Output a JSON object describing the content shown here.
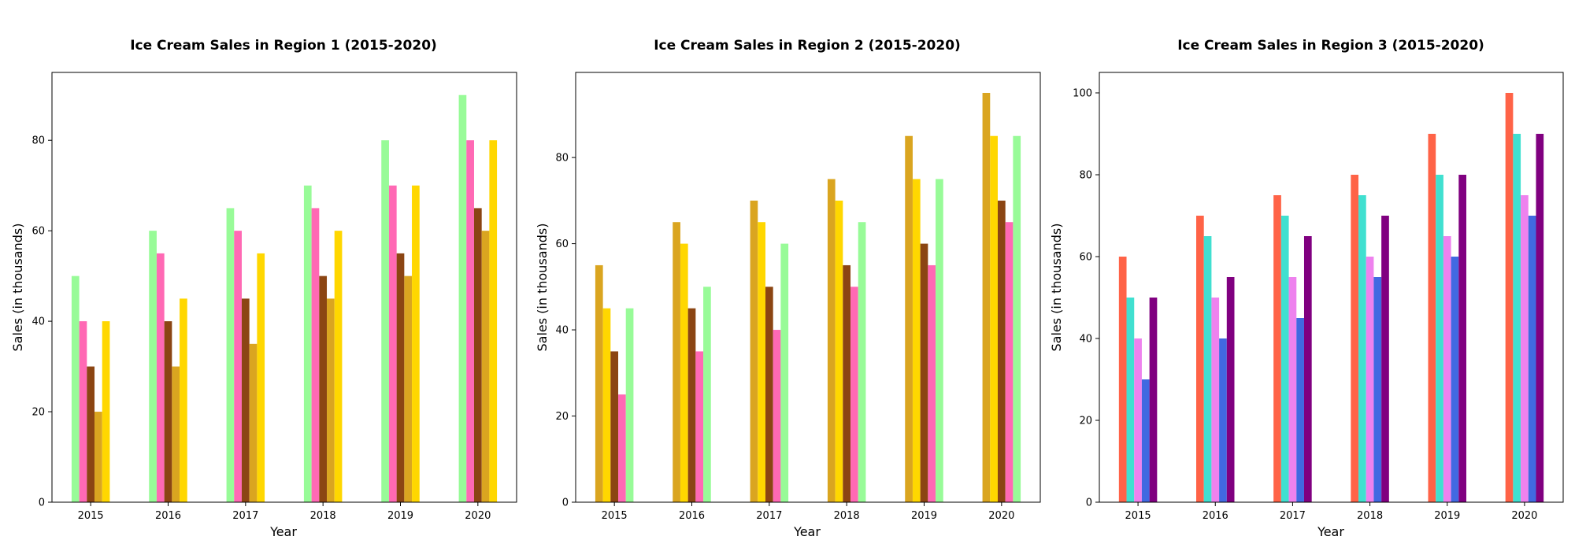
{
  "chart_data": [
    {
      "type": "bar",
      "title": "Ice Cream Sales in Region 1 (2015-2020)",
      "xlabel": "Year",
      "ylabel": "Sales (in thousands)",
      "categories": [
        "2015",
        "2016",
        "2017",
        "2018",
        "2019",
        "2020"
      ],
      "ylim": [
        0,
        95
      ],
      "yticks": [
        0,
        20,
        40,
        60,
        80
      ],
      "grid": false,
      "legend": "none",
      "series": [
        {
          "color": "#98fb98",
          "values": [
            50,
            60,
            65,
            70,
            80,
            90
          ]
        },
        {
          "color": "#ff69b4",
          "values": [
            40,
            55,
            60,
            65,
            70,
            80
          ]
        },
        {
          "color": "#8b4513",
          "values": [
            30,
            40,
            45,
            50,
            55,
            65
          ]
        },
        {
          "color": "#daa520",
          "values": [
            20,
            30,
            35,
            45,
            50,
            60
          ]
        },
        {
          "color": "#ffd700",
          "values": [
            40,
            45,
            55,
            60,
            70,
            80
          ]
        }
      ]
    },
    {
      "type": "bar",
      "title": "Ice Cream Sales in Region 2 (2015-2020)",
      "xlabel": "Year",
      "ylabel": "Sales (in thousands)",
      "categories": [
        "2015",
        "2016",
        "2017",
        "2018",
        "2019",
        "2020"
      ],
      "ylim": [
        0,
        99.75
      ],
      "yticks": [
        0,
        20,
        40,
        60,
        80
      ],
      "grid": false,
      "legend": "none",
      "series": [
        {
          "color": "#daa520",
          "values": [
            55,
            65,
            70,
            75,
            85,
            95
          ]
        },
        {
          "color": "#ffd700",
          "values": [
            45,
            60,
            65,
            70,
            75,
            85
          ]
        },
        {
          "color": "#8b4513",
          "values": [
            35,
            45,
            50,
            55,
            60,
            70
          ]
        },
        {
          "color": "#ff69b4",
          "values": [
            25,
            35,
            40,
            50,
            55,
            65
          ]
        },
        {
          "color": "#98fb98",
          "values": [
            45,
            50,
            60,
            65,
            75,
            85
          ]
        }
      ]
    },
    {
      "type": "bar",
      "title": "Ice Cream Sales in Region 3 (2015-2020)",
      "xlabel": "Year",
      "ylabel": "Sales (in thousands)",
      "categories": [
        "2015",
        "2016",
        "2017",
        "2018",
        "2019",
        "2020"
      ],
      "ylim": [
        0,
        105
      ],
      "yticks": [
        0,
        20,
        40,
        60,
        80,
        100
      ],
      "grid": false,
      "legend": "none",
      "series": [
        {
          "color": "#ff6347",
          "values": [
            60,
            70,
            75,
            80,
            90,
            100
          ]
        },
        {
          "color": "#40e0d0",
          "values": [
            50,
            65,
            70,
            75,
            80,
            90
          ]
        },
        {
          "color": "#ee82ee",
          "values": [
            40,
            50,
            55,
            60,
            65,
            75
          ]
        },
        {
          "color": "#4169e1",
          "values": [
            30,
            40,
            45,
            55,
            60,
            70
          ]
        },
        {
          "color": "#800080",
          "values": [
            50,
            55,
            65,
            70,
            80,
            90
          ]
        }
      ]
    }
  ]
}
